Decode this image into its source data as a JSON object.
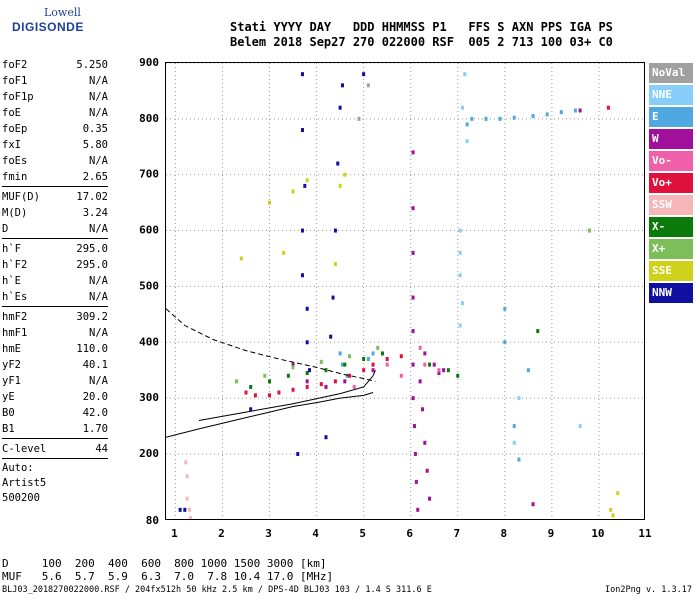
{
  "logo": {
    "brand_top": "Lowell",
    "brand_main": "DIGISONDE"
  },
  "header": {
    "line1": "Stati YYYY DAY   DDD HHMMSS P1   FFS S AXN PPS IGA PS",
    "line2": "Belem 2018 Sep27 270 022000 RSF  005 2 713 100 03+ C0"
  },
  "params": [
    {
      "label": "foF2",
      "value": "5.250"
    },
    {
      "label": "foF1",
      "value": "N/A"
    },
    {
      "label": "foF1p",
      "value": "N/A"
    },
    {
      "label": "foE",
      "value": "N/A"
    },
    {
      "label": "foEp",
      "value": "0.35"
    },
    {
      "label": "fxI",
      "value": "5.80"
    },
    {
      "label": "foEs",
      "value": "N/A"
    },
    {
      "label": "fmin",
      "value": "2.65"
    },
    {
      "label": "MUF(D)",
      "value": "17.02"
    },
    {
      "label": "M(D)",
      "value": "3.24"
    },
    {
      "label": "D",
      "value": "N/A"
    },
    {
      "label": "h`F",
      "value": "295.0"
    },
    {
      "label": "h`F2",
      "value": "295.0"
    },
    {
      "label": "h`E",
      "value": "N/A"
    },
    {
      "label": "h`Es",
      "value": "N/A"
    },
    {
      "label": "hmF2",
      "value": "309.2"
    },
    {
      "label": "hmF1",
      "value": "N/A"
    },
    {
      "label": "hmE",
      "value": "110.0"
    },
    {
      "label": "yF2",
      "value": "40.1"
    },
    {
      "label": "yF1",
      "value": "N/A"
    },
    {
      "label": "yE",
      "value": "20.0"
    },
    {
      "label": "B0",
      "value": "42.0"
    },
    {
      "label": "B1",
      "value": "1.70"
    },
    {
      "label": "C-level",
      "value": "44"
    }
  ],
  "auto": {
    "line1": "Auto:",
    "line2": "Artist5",
    "line3": "500200"
  },
  "legend": [
    {
      "label": "NoVal",
      "color": "#a0a0a0"
    },
    {
      "label": "NNE",
      "color": "#87cefa"
    },
    {
      "label": "E",
      "color": "#4fa8e0"
    },
    {
      "label": "W",
      "color": "#a0109a"
    },
    {
      "label": "Vo-",
      "color": "#f060a8"
    },
    {
      "label": "Vo+",
      "color": "#e0103c"
    },
    {
      "label": "SSW",
      "color": "#f4b6b6"
    },
    {
      "label": "X-",
      "color": "#0a7a0a"
    },
    {
      "label": "X+",
      "color": "#7cbf5a"
    },
    {
      "label": "SSE",
      "color": "#cfd21a"
    },
    {
      "label": "NNW",
      "color": "#1010a0"
    }
  ],
  "footer": {
    "d_row": "D     100  200  400  600  800 1000 1500 3000 [km]",
    "muf_row": "MUF   5.6  5.7  5.9  6.3  7.0  7.8 10.4 17.0 [MHz]",
    "info_line": "BLJ03_2018270022000.RSF / 204fx512h 50 kHz 2.5 km / DPS-4D BLJ03 103 / 1.4 S 311.6 E",
    "version": "Ion2Png v. 1.3.17"
  },
  "chart_data": {
    "type": "scatter",
    "title": "",
    "xlabel": "",
    "ylabel": "",
    "xlim": [
      0.8,
      11.0
    ],
    "ylim": [
      80,
      900
    ],
    "xticks": [
      1,
      2,
      3,
      4,
      5,
      6,
      7,
      8,
      9,
      10,
      11
    ],
    "yticks": [
      80,
      200,
      300,
      400,
      500,
      600,
      700,
      800,
      900
    ],
    "series": [
      {
        "name": "NNE",
        "color": "#87cefa",
        "points": [
          [
            7.05,
            600
          ],
          [
            7.05,
            560
          ],
          [
            7.1,
            820
          ],
          [
            7.15,
            880
          ],
          [
            7.2,
            760
          ],
          [
            7.05,
            430
          ],
          [
            7.1,
            470
          ],
          [
            7.05,
            520
          ],
          [
            9.6,
            250
          ],
          [
            8.2,
            220
          ],
          [
            8.3,
            300
          ]
        ]
      },
      {
        "name": "E",
        "color": "#4fa8e0",
        "points": [
          [
            7.3,
            800
          ],
          [
            7.6,
            800
          ],
          [
            7.9,
            800
          ],
          [
            8.2,
            802
          ],
          [
            8.6,
            805
          ],
          [
            8.9,
            808
          ],
          [
            9.2,
            812
          ],
          [
            9.5,
            815
          ],
          [
            7.2,
            790
          ],
          [
            8.0,
            460
          ],
          [
            8.0,
            400
          ],
          [
            8.2,
            250
          ],
          [
            8.3,
            190
          ],
          [
            8.5,
            350
          ],
          [
            4.55,
            360
          ],
          [
            4.65,
            340
          ],
          [
            4.5,
            380
          ],
          [
            5.1,
            370
          ],
          [
            5.2,
            380
          ]
        ]
      },
      {
        "name": "W",
        "color": "#a0109a",
        "points": [
          [
            6.05,
            740
          ],
          [
            6.05,
            640
          ],
          [
            6.05,
            560
          ],
          [
            6.05,
            480
          ],
          [
            6.05,
            420
          ],
          [
            6.05,
            360
          ],
          [
            6.05,
            300
          ],
          [
            6.08,
            250
          ],
          [
            6.1,
            200
          ],
          [
            6.12,
            150
          ],
          [
            6.15,
            100
          ],
          [
            6.2,
            330
          ],
          [
            6.25,
            280
          ],
          [
            6.3,
            220
          ],
          [
            6.35,
            170
          ],
          [
            6.4,
            120
          ],
          [
            6.3,
            380
          ],
          [
            6.5,
            360
          ],
          [
            6.6,
            345
          ],
          [
            6.7,
            350
          ],
          [
            8.6,
            110
          ],
          [
            9.6,
            815
          ],
          [
            3.5,
            360
          ],
          [
            3.8,
            330
          ],
          [
            4.2,
            320
          ],
          [
            4.6,
            330
          ],
          [
            5.2,
            350
          ]
        ]
      },
      {
        "name": "Vo-",
        "color": "#f060a8",
        "points": [
          [
            6.2,
            390
          ],
          [
            6.3,
            360
          ],
          [
            6.6,
            350
          ],
          [
            5.5,
            360
          ],
          [
            5.8,
            340
          ],
          [
            4.8,
            320
          ]
        ]
      },
      {
        "name": "Vo+",
        "color": "#e0103c",
        "points": [
          [
            2.5,
            310
          ],
          [
            2.7,
            305
          ],
          [
            3.0,
            305
          ],
          [
            3.2,
            310
          ],
          [
            3.5,
            315
          ],
          [
            3.8,
            320
          ],
          [
            4.1,
            325
          ],
          [
            4.4,
            330
          ],
          [
            4.7,
            340
          ],
          [
            5.0,
            350
          ],
          [
            5.2,
            360
          ],
          [
            5.5,
            370
          ],
          [
            5.8,
            375
          ],
          [
            10.2,
            820
          ]
        ]
      },
      {
        "name": "SSW",
        "color": "#f4b6b6",
        "points": [
          [
            1.25,
            120
          ],
          [
            1.25,
            160
          ],
          [
            1.3,
            100
          ],
          [
            1.32,
            85
          ],
          [
            1.22,
            185
          ]
        ]
      },
      {
        "name": "X-",
        "color": "#0a7a0a",
        "points": [
          [
            2.6,
            320
          ],
          [
            3.0,
            330
          ],
          [
            3.4,
            340
          ],
          [
            3.8,
            345
          ],
          [
            4.2,
            350
          ],
          [
            4.6,
            360
          ],
          [
            5.0,
            370
          ],
          [
            5.4,
            380
          ],
          [
            6.4,
            360
          ],
          [
            6.8,
            350
          ],
          [
            7.0,
            340
          ],
          [
            8.7,
            420
          ]
        ]
      },
      {
        "name": "X+",
        "color": "#7cbf5a",
        "points": [
          [
            2.3,
            330
          ],
          [
            2.9,
            340
          ],
          [
            3.5,
            355
          ],
          [
            4.1,
            365
          ],
          [
            4.7,
            375
          ],
          [
            5.3,
            390
          ],
          [
            9.8,
            600
          ]
        ]
      },
      {
        "name": "SSE",
        "color": "#cfd21a",
        "points": [
          [
            3.0,
            650
          ],
          [
            3.5,
            670
          ],
          [
            3.8,
            690
          ],
          [
            4.5,
            680
          ],
          [
            4.6,
            700
          ],
          [
            4.4,
            540
          ],
          [
            3.3,
            560
          ],
          [
            2.4,
            550
          ],
          [
            10.25,
            100
          ],
          [
            10.3,
            90
          ],
          [
            10.4,
            130
          ]
        ]
      },
      {
        "name": "NNW",
        "color": "#1010a0",
        "points": [
          [
            1.1,
            100
          ],
          [
            1.2,
            100
          ],
          [
            3.7,
            880
          ],
          [
            3.7,
            780
          ],
          [
            3.75,
            680
          ],
          [
            3.7,
            600
          ],
          [
            3.7,
            520
          ],
          [
            3.8,
            460
          ],
          [
            3.8,
            400
          ],
          [
            3.85,
            350
          ],
          [
            4.3,
            410
          ],
          [
            4.35,
            480
          ],
          [
            4.4,
            600
          ],
          [
            4.45,
            720
          ],
          [
            4.5,
            820
          ],
          [
            4.55,
            860
          ],
          [
            5.0,
            880
          ],
          [
            3.6,
            200
          ],
          [
            4.2,
            230
          ],
          [
            2.6,
            280
          ]
        ]
      },
      {
        "name": "NoVal",
        "color": "#a0a0a0",
        "points": [
          [
            5.1,
            860
          ],
          [
            4.9,
            800
          ]
        ]
      }
    ],
    "overlays": [
      {
        "type": "profile",
        "style": "solid",
        "points": [
          [
            0.8,
            230
          ],
          [
            1.5,
            245
          ],
          [
            2.0,
            255
          ],
          [
            2.5,
            265
          ],
          [
            3.0,
            275
          ],
          [
            3.5,
            285
          ],
          [
            4.0,
            292
          ],
          [
            4.5,
            300
          ],
          [
            5.0,
            305
          ],
          [
            5.2,
            310
          ]
        ]
      },
      {
        "type": "profile",
        "style": "solid",
        "points": [
          [
            1.5,
            260
          ],
          [
            2.5,
            275
          ],
          [
            3.5,
            290
          ],
          [
            4.5,
            308
          ],
          [
            5.0,
            320
          ],
          [
            5.2,
            340
          ],
          [
            5.25,
            350
          ]
        ]
      },
      {
        "type": "profile",
        "style": "dashed",
        "points": [
          [
            0.8,
            460
          ],
          [
            1.2,
            430
          ],
          [
            1.8,
            405
          ],
          [
            2.5,
            385
          ],
          [
            3.2,
            370
          ],
          [
            4.0,
            355
          ],
          [
            4.6,
            342
          ],
          [
            5.0,
            335
          ],
          [
            5.25,
            330
          ]
        ]
      }
    ]
  }
}
